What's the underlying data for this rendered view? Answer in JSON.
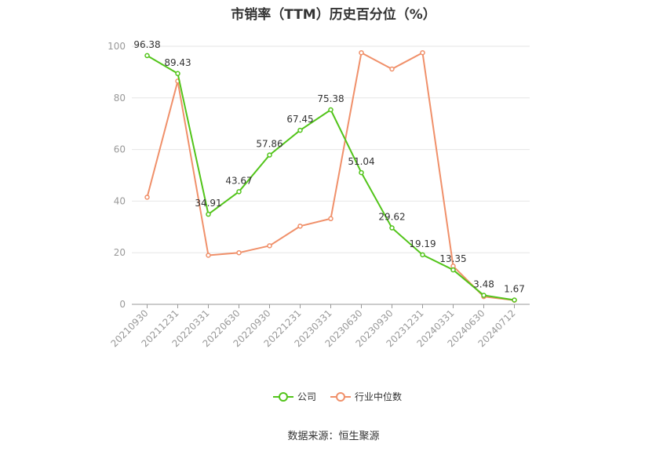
{
  "title": "市销率（TTM）历史百分位（%）",
  "source": "数据来源：恒生聚源",
  "chart_data": {
    "type": "line",
    "title": "市销率（TTM）历史百分位（%）",
    "xlabel": "",
    "ylabel": "",
    "ylim": [
      0,
      100
    ],
    "yticks": [
      0,
      20,
      40,
      60,
      80,
      100
    ],
    "grid": true,
    "legend_position": "bottom",
    "categories": [
      "20210930",
      "20211231",
      "20220331",
      "20220630",
      "20220930",
      "20221231",
      "20230331",
      "20230630",
      "20230930",
      "20231231",
      "20240331",
      "20240630",
      "20240712"
    ],
    "series": [
      {
        "name": "公司",
        "color": "#52c41a",
        "show_labels": true,
        "values": [
          96.38,
          89.43,
          34.91,
          43.67,
          57.86,
          67.45,
          75.38,
          51.04,
          29.62,
          19.19,
          13.35,
          3.48,
          1.67
        ]
      },
      {
        "name": "行业中位数",
        "color": "#f0906a",
        "show_labels": false,
        "values": [
          41.5,
          86.5,
          19.0,
          20.0,
          22.7,
          30.3,
          33.2,
          97.5,
          91.2,
          97.5,
          14.8,
          3.0,
          1.6
        ]
      }
    ]
  }
}
